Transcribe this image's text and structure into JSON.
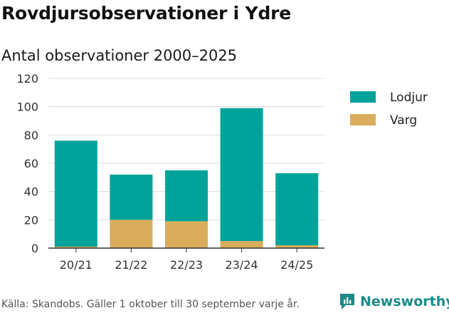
{
  "header": {
    "title": "Rovdjursobservationer i Ydre",
    "subtitle": "Antal observationer 2000–2025"
  },
  "footer": {
    "source": "Källa: Skandobs. Gäller 1 oktober till 30 september varje år.",
    "brand": "Newsworthy"
  },
  "colors": {
    "lodjur": "#00A39A",
    "varg": "#D9AD5B",
    "grid": "#dcdcdc",
    "axis": "#333333",
    "brand": "#1c8a87"
  },
  "chart_data": {
    "type": "bar",
    "stacked": true,
    "categories": [
      "20/21",
      "21/22",
      "22/23",
      "23/24",
      "24/25"
    ],
    "series": [
      {
        "name": "Varg",
        "values": [
          1,
          20,
          19,
          5,
          2
        ],
        "color": "#D9AD5B"
      },
      {
        "name": "Lodjur",
        "values": [
          75,
          32,
          36,
          94,
          51
        ],
        "color": "#00A39A"
      }
    ],
    "legend_order": [
      "Lodjur",
      "Varg"
    ],
    "ylim": [
      0,
      120
    ],
    "yticks": [
      0,
      20,
      40,
      60,
      80,
      100,
      120
    ],
    "grid": true,
    "legend_position": "right"
  }
}
